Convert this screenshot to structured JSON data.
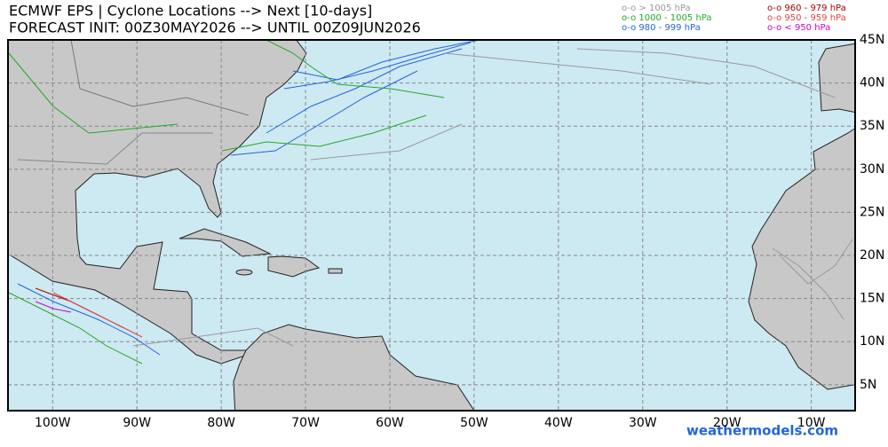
{
  "header": {
    "title": "ECMWF EPS | Cyclone Locations --> Next [10-days]",
    "subtitle": "FORECAST INIT: 00Z30MAY2026 --> UNTIL 00Z09JUN2026"
  },
  "legend": [
    {
      "label": "o-o > 1005 hPa",
      "color": "#999999"
    },
    {
      "label": "o-o 1000 - 1005 hPa",
      "color": "#22aa22"
    },
    {
      "label": "o-o 980 - 999 hPa",
      "color": "#2266dd"
    },
    {
      "label": "o-o 960 - 979 hPa",
      "color": "#aa0000"
    },
    {
      "label": "o-o 950 - 959 hPa",
      "color": "#dd4444"
    },
    {
      "label": "o-o < 950 hPa",
      "color": "#cc00cc"
    }
  ],
  "map": {
    "xlim": [
      -105.3,
      -4.8
    ],
    "ylim": [
      2,
      45
    ],
    "xticks": [
      {
        "value": -100,
        "label": "100W"
      },
      {
        "value": -90,
        "label": "90W"
      },
      {
        "value": -80,
        "label": "80W"
      },
      {
        "value": -70,
        "label": "70W"
      },
      {
        "value": -60,
        "label": "60W"
      },
      {
        "value": -50,
        "label": "50W"
      },
      {
        "value": -40,
        "label": "40W"
      },
      {
        "value": -30,
        "label": "30W"
      },
      {
        "value": -20,
        "label": "20W"
      },
      {
        "value": -10,
        "label": "10W"
      }
    ],
    "yticks": [
      {
        "value": 45,
        "label": "45N"
      },
      {
        "value": 40,
        "label": "40N"
      },
      {
        "value": 35,
        "label": "35N"
      },
      {
        "value": 30,
        "label": "30N"
      },
      {
        "value": 25,
        "label": "25N"
      },
      {
        "value": 20,
        "label": "20N"
      },
      {
        "value": 15,
        "label": "15N"
      },
      {
        "value": 10,
        "label": "10N"
      },
      {
        "value": 5,
        "label": "5N"
      }
    ],
    "grid": true
  },
  "watermark": "weathermodels.com"
}
